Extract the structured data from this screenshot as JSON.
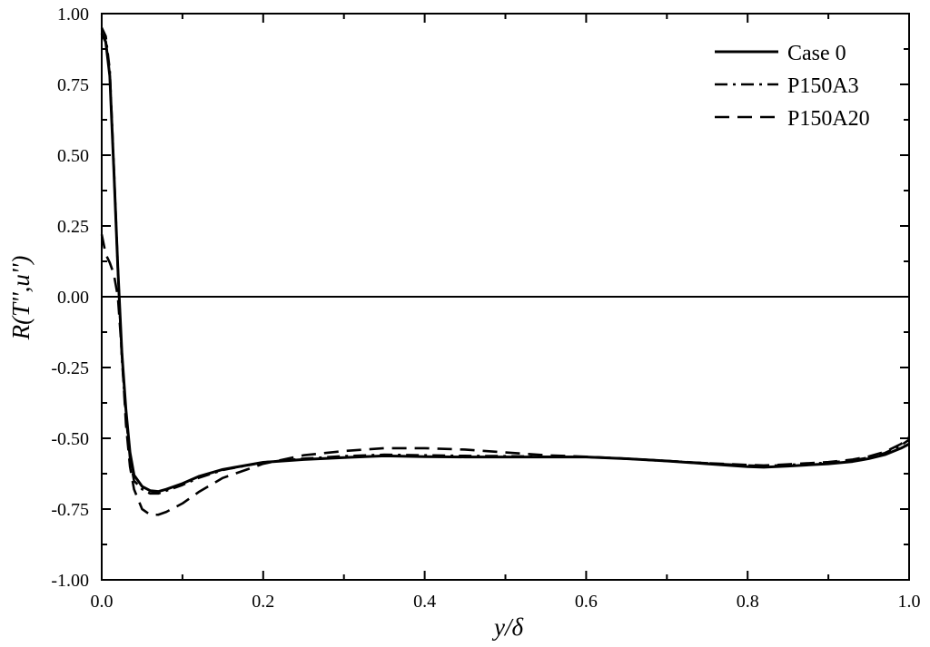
{
  "chart_data": {
    "type": "line",
    "title": "",
    "xlabel": "y/δ",
    "ylabel": "R(T'',u'')",
    "xlim": [
      0,
      1
    ],
    "ylim": [
      -1,
      1
    ],
    "xticks": [
      "0.0",
      "0.2",
      "0.4",
      "0.6",
      "0.8",
      "1.0"
    ],
    "yticks": [
      "-1.00",
      "-0.75",
      "-0.50",
      "-0.25",
      "0.00",
      "0.25",
      "0.50",
      "0.75",
      "1.00"
    ],
    "grid": false,
    "legend_position": "top-right",
    "zero_line": 0,
    "series": [
      {
        "name": "Case 0",
        "style": "solid",
        "color": "#000000",
        "x": [
          0.0,
          0.005,
          0.01,
          0.015,
          0.02,
          0.025,
          0.03,
          0.035,
          0.04,
          0.05,
          0.06,
          0.07,
          0.08,
          0.1,
          0.12,
          0.15,
          0.2,
          0.25,
          0.3,
          0.35,
          0.4,
          0.45,
          0.5,
          0.55,
          0.6,
          0.65,
          0.7,
          0.75,
          0.8,
          0.82,
          0.85,
          0.9,
          0.93,
          0.95,
          0.97,
          0.99,
          1.0
        ],
        "y": [
          0.93,
          0.9,
          0.78,
          0.45,
          0.1,
          -0.2,
          -0.4,
          -0.55,
          -0.63,
          -0.67,
          -0.685,
          -0.688,
          -0.68,
          -0.66,
          -0.635,
          -0.61,
          -0.585,
          -0.575,
          -0.568,
          -0.562,
          -0.565,
          -0.566,
          -0.566,
          -0.566,
          -0.566,
          -0.572,
          -0.58,
          -0.59,
          -0.6,
          -0.602,
          -0.598,
          -0.59,
          -0.582,
          -0.572,
          -0.558,
          -0.535,
          -0.52
        ]
      },
      {
        "name": "P150A3",
        "style": "dashdot",
        "color": "#000000",
        "x": [
          0.0,
          0.005,
          0.01,
          0.015,
          0.02,
          0.025,
          0.03,
          0.035,
          0.04,
          0.05,
          0.06,
          0.07,
          0.08,
          0.1,
          0.12,
          0.15,
          0.2,
          0.25,
          0.3,
          0.35,
          0.4,
          0.45,
          0.5,
          0.55,
          0.6,
          0.65,
          0.7,
          0.75,
          0.8,
          0.82,
          0.85,
          0.9,
          0.93,
          0.95,
          0.97,
          0.99,
          1.0
        ],
        "y": [
          0.95,
          0.92,
          0.8,
          0.46,
          0.1,
          -0.22,
          -0.42,
          -0.57,
          -0.65,
          -0.68,
          -0.695,
          -0.695,
          -0.685,
          -0.665,
          -0.64,
          -0.612,
          -0.585,
          -0.572,
          -0.563,
          -0.558,
          -0.56,
          -0.562,
          -0.563,
          -0.565,
          -0.566,
          -0.572,
          -0.58,
          -0.588,
          -0.596,
          -0.598,
          -0.594,
          -0.586,
          -0.578,
          -0.568,
          -0.552,
          -0.525,
          -0.505
        ]
      },
      {
        "name": "P150A20",
        "style": "dashed",
        "color": "#000000",
        "x": [
          0.0,
          0.005,
          0.01,
          0.015,
          0.02,
          0.025,
          0.03,
          0.035,
          0.04,
          0.05,
          0.06,
          0.07,
          0.08,
          0.1,
          0.12,
          0.15,
          0.2,
          0.25,
          0.3,
          0.35,
          0.4,
          0.45,
          0.5,
          0.55,
          0.6,
          0.65,
          0.7,
          0.75,
          0.8,
          0.82,
          0.85,
          0.9,
          0.93,
          0.95,
          0.97,
          0.99,
          1.0
        ],
        "y": [
          0.22,
          0.15,
          0.12,
          0.08,
          0.0,
          -0.2,
          -0.45,
          -0.6,
          -0.68,
          -0.75,
          -0.77,
          -0.77,
          -0.76,
          -0.73,
          -0.69,
          -0.64,
          -0.59,
          -0.56,
          -0.545,
          -0.535,
          -0.535,
          -0.54,
          -0.55,
          -0.56,
          -0.565,
          -0.572,
          -0.58,
          -0.588,
          -0.594,
          -0.596,
          -0.592,
          -0.584,
          -0.575,
          -0.564,
          -0.548,
          -0.52,
          -0.495
        ]
      }
    ]
  }
}
